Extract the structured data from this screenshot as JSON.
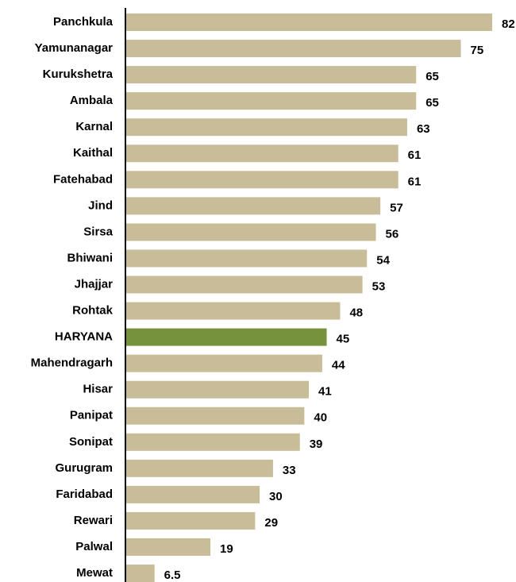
{
  "chart_data": {
    "type": "bar",
    "orientation": "horizontal",
    "categories": [
      "Panchkula",
      "Yamunanagar",
      "Kurukshetra",
      "Ambala",
      "Karnal",
      "Kaithal",
      "Fatehabad",
      "Jind",
      "Sirsa",
      "Bhiwani",
      "Jhajjar",
      "Rohtak",
      "HARYANA",
      "Mahendragarh",
      "Hisar",
      "Panipat",
      "Sonipat",
      "Gurugram",
      "Faridabad",
      "Rewari",
      "Palwal",
      "Mewat"
    ],
    "values": [
      82,
      75,
      65,
      65,
      63,
      61,
      61,
      57,
      56,
      54,
      53,
      48,
      45,
      44,
      41,
      40,
      39,
      33,
      30,
      29,
      19,
      6.5
    ],
    "colors": [
      "#c8bd98",
      "#c8bd98",
      "#c8bd98",
      "#c8bd98",
      "#c8bd98",
      "#c8bd98",
      "#c8bd98",
      "#c8bd98",
      "#c8bd98",
      "#c8bd98",
      "#c8bd98",
      "#c8bd98",
      "#76923c",
      "#c8bd98",
      "#c8bd98",
      "#c8bd98",
      "#c8bd98",
      "#c8bd98",
      "#c8bd98",
      "#c8bd98",
      "#c8bd98",
      "#c8bd98"
    ]
  }
}
